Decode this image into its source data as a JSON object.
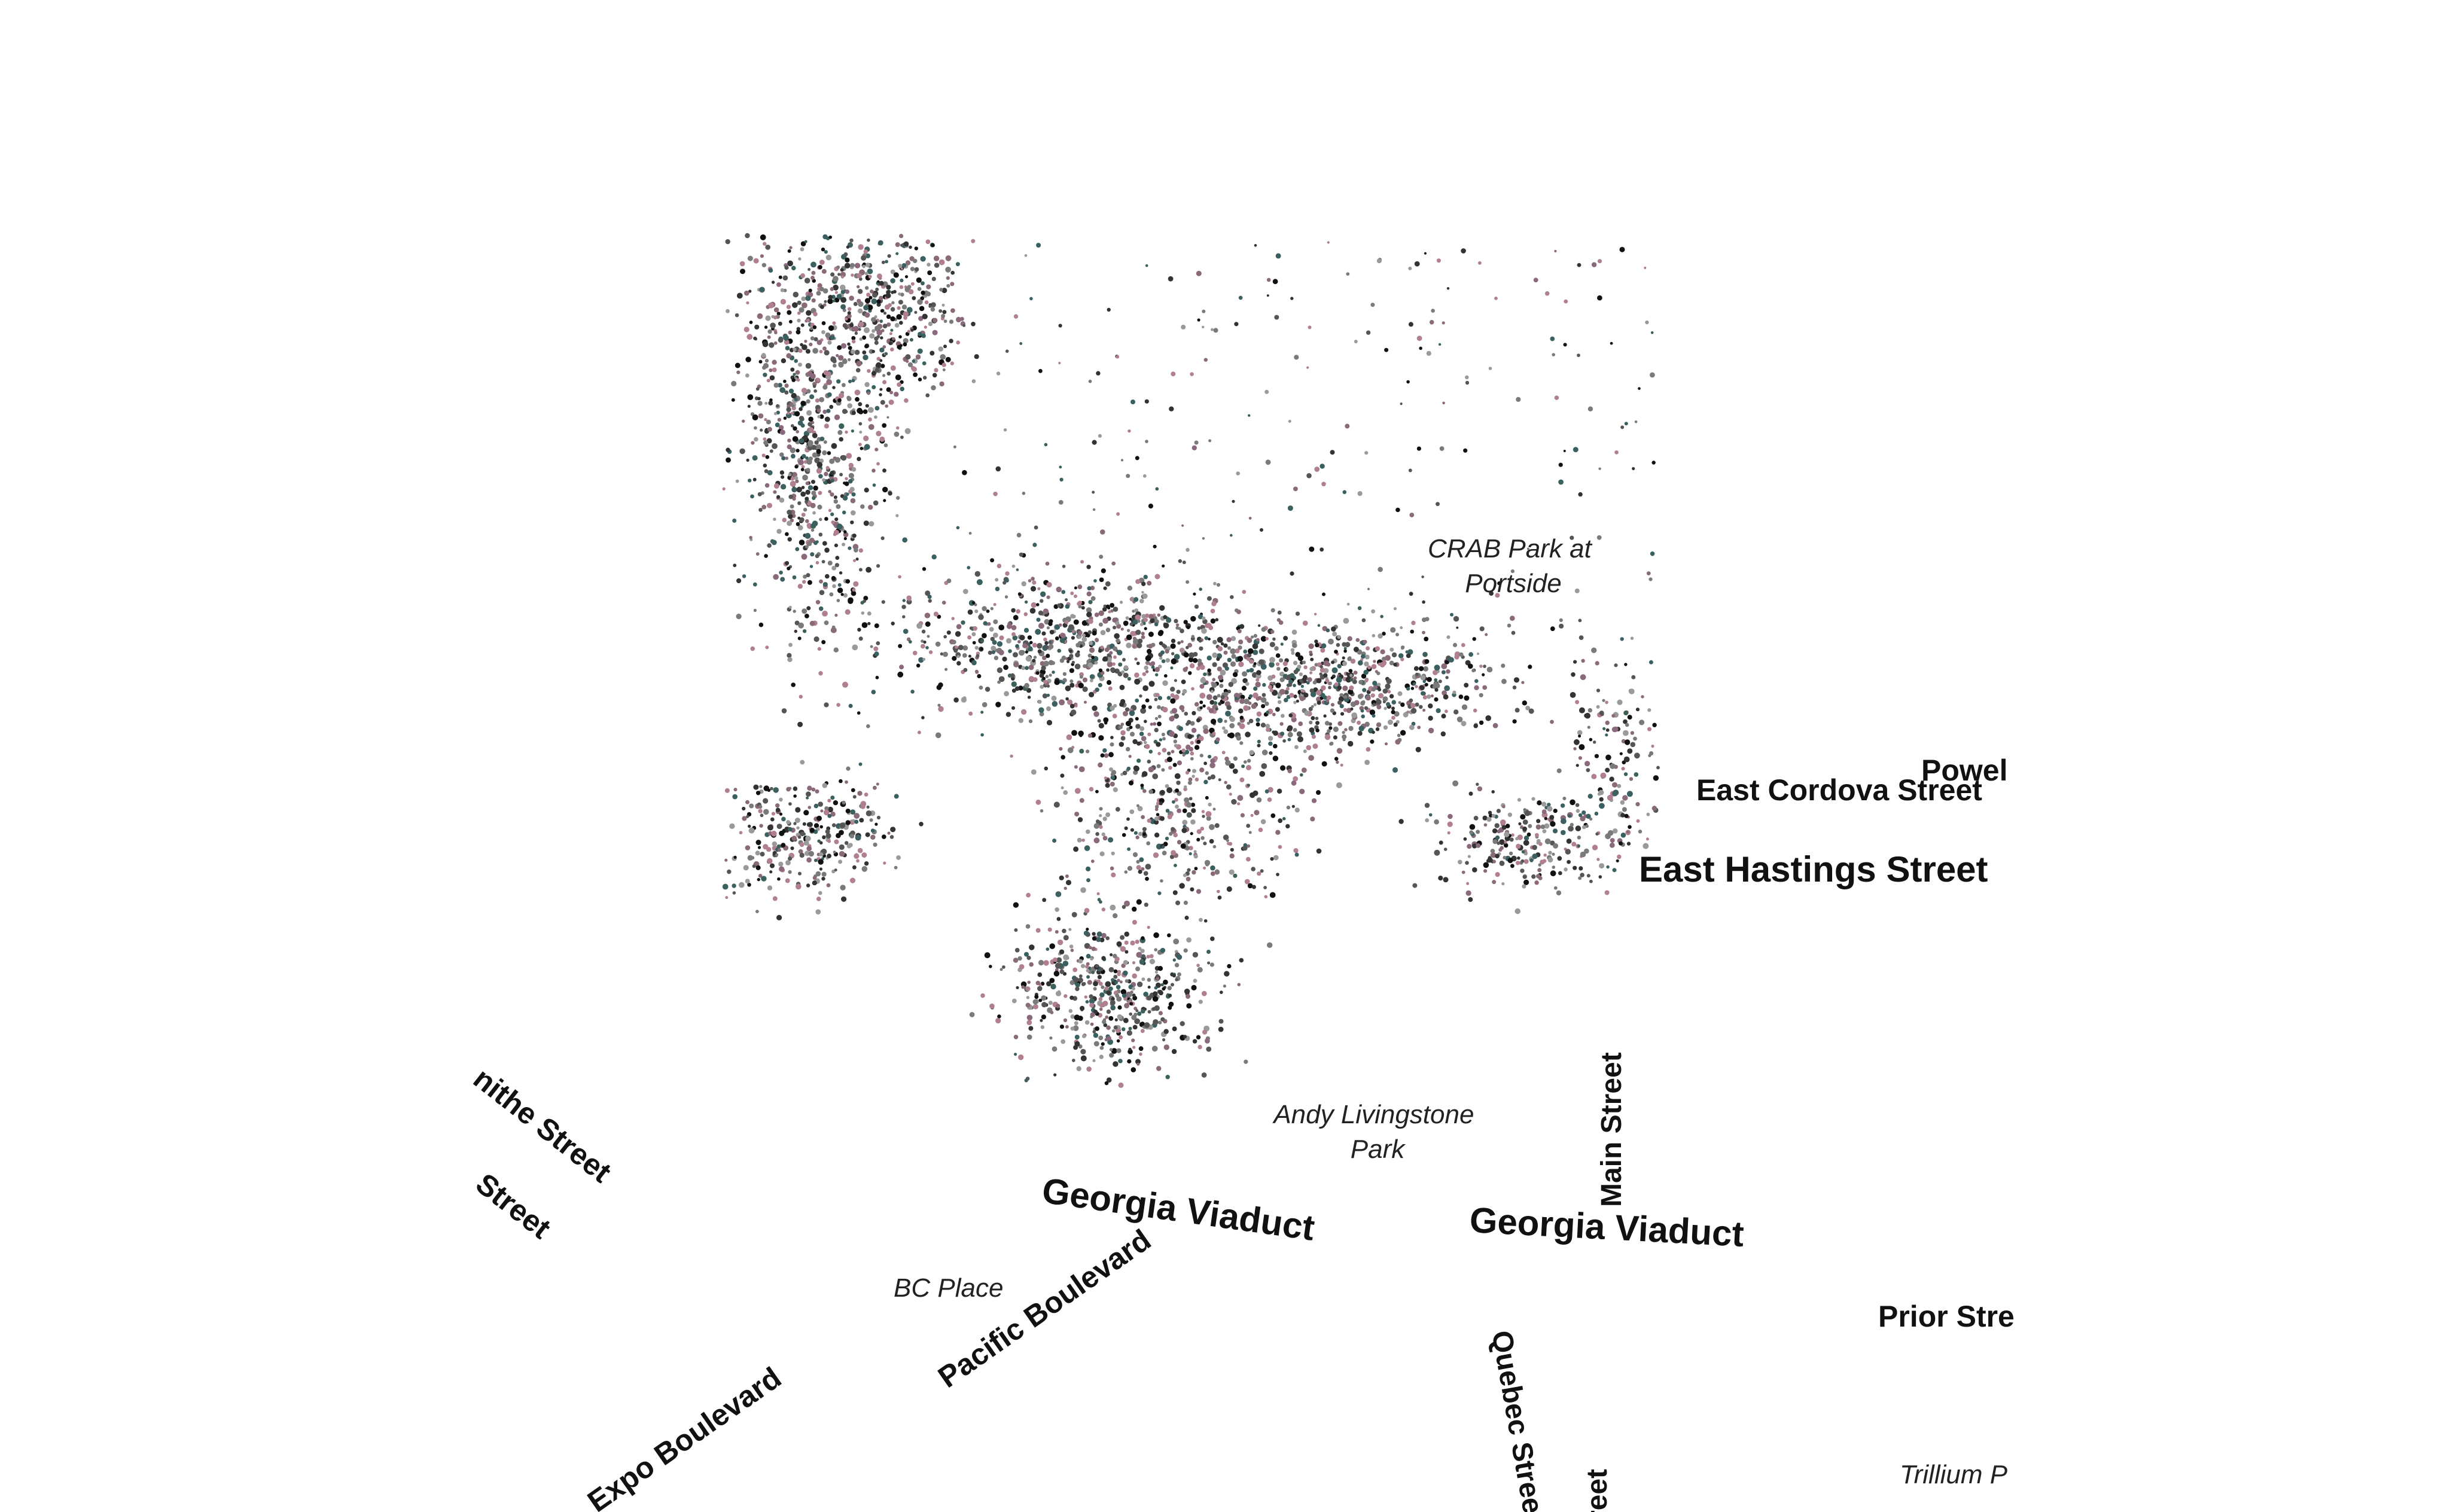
{
  "map": {
    "colors": {
      "background": "#ffffff",
      "street_label": "#111111",
      "park_label": "#222222",
      "dot_palette": [
        "#111111",
        "#333333",
        "#555555",
        "#7a7a7a",
        "#9a9a9a",
        "#b08090",
        "#8a6a7a",
        "#3a6060"
      ]
    },
    "street_labels": [
      {
        "id": "powell",
        "text": "Powel"
      },
      {
        "id": "east-cordova",
        "text": "East Cordova Street"
      },
      {
        "id": "east-hastings",
        "text": "East Hastings Street"
      },
      {
        "id": "smithe",
        "text": "nithe Street"
      },
      {
        "id": "street-left",
        "text": "Street"
      },
      {
        "id": "georgia-viaduct-1",
        "text": "Georgia Viaduct"
      },
      {
        "id": "georgia-viaduct-2",
        "text": "Georgia Viaduct"
      },
      {
        "id": "main-street",
        "text": "Main Street"
      },
      {
        "id": "pacific-boulevard",
        "text": "Pacific Boulevard"
      },
      {
        "id": "prior-street",
        "text": "Prior Stre"
      },
      {
        "id": "quebec-street",
        "text": "Quebec Street"
      },
      {
        "id": "treet-bottom",
        "text": "treet"
      },
      {
        "id": "expo-boulevard",
        "text": "Expo Boulevard"
      }
    ],
    "park_labels": [
      {
        "id": "crab-park",
        "lines": [
          "CRAB Park at",
          "Portside"
        ]
      },
      {
        "id": "andy-livingstone",
        "lines": [
          "Andy Livingstone",
          "Park"
        ]
      },
      {
        "id": "bc-place",
        "lines": [
          "BC Place"
        ]
      },
      {
        "id": "trillium",
        "lines": [
          "Trillium P"
        ]
      }
    ]
  }
}
